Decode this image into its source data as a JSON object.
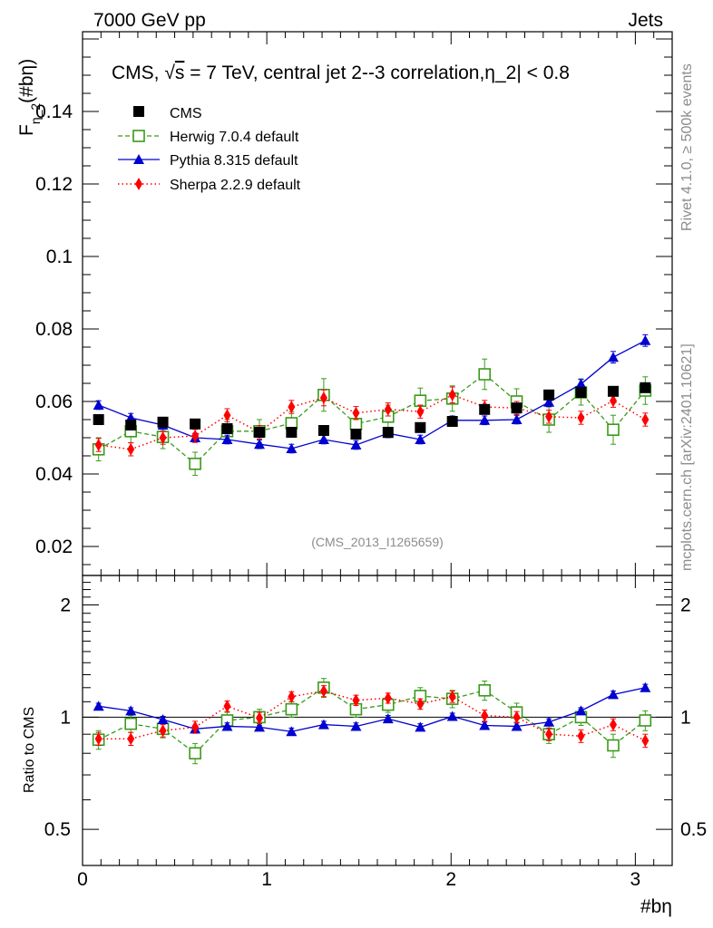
{
  "header": {
    "left": "7000 GeV pp",
    "right": "Jets"
  },
  "chart_data": {
    "type": "scatter",
    "title": "CMS, √s = 7 TeV, central jet 2--3 correlation,η_2| < 0.8",
    "title_prefix": "CMS, ",
    "title_sqrt": "√",
    "title_s": "s",
    "title_suffix": " = 7 TeV, central jet 2--3 correlation,η_2| < 0.8",
    "ylabel": "F_η_2(#bη)",
    "ylabel_main": "F",
    "ylabel_sub": "η_2",
    "ylabel_tail": "(#bη)",
    "xlabel": "#bη",
    "ratio_ylabel": "Ratio to CMS",
    "analysis_id": "(CMS_2013_I1265659)",
    "side_label_1": "Rivet 4.1.0, ≥ 500k events",
    "side_label_2": "mcplots.cern.ch [arXiv:2401.10621]",
    "xlim": [
      0,
      3.2
    ],
    "ylim": [
      0.012,
      0.162
    ],
    "ratio_ylim": [
      0.4,
      2.4
    ],
    "x_ticks": [
      {
        "v": 0,
        "label": "0"
      },
      {
        "v": 1,
        "label": "1"
      },
      {
        "v": 2,
        "label": "2"
      },
      {
        "v": 3,
        "label": "3"
      }
    ],
    "y_ticks": [
      {
        "v": 0.02,
        "label": "0.02"
      },
      {
        "v": 0.04,
        "label": "0.04"
      },
      {
        "v": 0.06,
        "label": "0.06"
      },
      {
        "v": 0.08,
        "label": "0.08"
      },
      {
        "v": 0.1,
        "label": "0.1"
      },
      {
        "v": 0.12,
        "label": "0.12"
      },
      {
        "v": 0.14,
        "label": "0.14"
      }
    ],
    "ratio_y_ticks": [
      {
        "v": 0.5,
        "label": "0.5"
      },
      {
        "v": 1,
        "label": "1"
      },
      {
        "v": 2,
        "label": "2"
      }
    ],
    "x": [
      0.087,
      0.262,
      0.436,
      0.611,
      0.785,
      0.96,
      1.134,
      1.309,
      1.484,
      1.658,
      1.833,
      2.007,
      2.182,
      2.356,
      2.531,
      2.705,
      2.88,
      3.054
    ],
    "series": [
      {
        "name": "CMS",
        "color": "#000000",
        "marker": "square",
        "values": [
          0.055,
          0.0535,
          0.0543,
          0.0538,
          0.0525,
          0.0515,
          0.0515,
          0.052,
          0.051,
          0.0515,
          0.0528,
          0.0545,
          0.0578,
          0.0582,
          0.0618,
          0.0625,
          0.0628,
          0.0638
        ],
        "err": [
          0.0006,
          0.0006,
          0.0006,
          0.0006,
          0.0006,
          0.0006,
          0.0006,
          0.0006,
          0.0006,
          0.0006,
          0.0006,
          0.0006,
          0.0006,
          0.0006,
          0.0006,
          0.0006,
          0.0006,
          0.0006
        ],
        "ratio": [
          1,
          1,
          1,
          1,
          1,
          1,
          1,
          1,
          1,
          1,
          1,
          1,
          1,
          1,
          1,
          1,
          1,
          1
        ]
      },
      {
        "name": "Herwig 7.0.4 default",
        "color": "#3a9a1a",
        "marker": "open-square",
        "line": "dashed",
        "values": [
          0.0468,
          0.0518,
          0.0502,
          0.0428,
          0.0518,
          0.0518,
          0.054,
          0.0618,
          0.0538,
          0.0558,
          0.0602,
          0.0608,
          0.0675,
          0.06,
          0.055,
          0.0625,
          0.0522,
          0.063
        ],
        "err": [
          0.0032,
          0.0032,
          0.0032,
          0.0032,
          0.0032,
          0.0032,
          0.0032,
          0.0045,
          0.0032,
          0.0032,
          0.0035,
          0.0035,
          0.0042,
          0.0035,
          0.0035,
          0.0035,
          0.004,
          0.0038
        ],
        "ratio": [
          0.87,
          0.96,
          0.93,
          0.8,
          0.98,
          1.0,
          1.05,
          1.2,
          1.05,
          1.08,
          1.14,
          1.12,
          1.18,
          1.03,
          0.9,
          1.0,
          0.84,
          0.98
        ],
        "ratio_err": [
          0.05,
          0.05,
          0.05,
          0.05,
          0.05,
          0.05,
          0.05,
          0.07,
          0.05,
          0.05,
          0.06,
          0.06,
          0.07,
          0.06,
          0.05,
          0.05,
          0.06,
          0.06
        ]
      },
      {
        "name": "Pythia 8.315 default",
        "color": "#0000d0",
        "marker": "triangle",
        "line": "solid",
        "values": [
          0.059,
          0.0555,
          0.0535,
          0.05,
          0.0495,
          0.0482,
          0.047,
          0.0495,
          0.048,
          0.0512,
          0.0495,
          0.0548,
          0.0548,
          0.055,
          0.0598,
          0.0648,
          0.0722,
          0.0768
        ],
        "err": [
          0.0012,
          0.0012,
          0.0012,
          0.0012,
          0.0012,
          0.0012,
          0.0012,
          0.0012,
          0.0012,
          0.0012,
          0.0012,
          0.0012,
          0.0012,
          0.0012,
          0.0012,
          0.0014,
          0.0016,
          0.0016
        ],
        "ratio": [
          1.07,
          1.04,
          0.985,
          0.93,
          0.945,
          0.94,
          0.915,
          0.955,
          0.945,
          0.99,
          0.94,
          1.005,
          0.95,
          0.945,
          0.97,
          1.04,
          1.15,
          1.2
        ],
        "ratio_err": [
          0.02,
          0.02,
          0.02,
          0.02,
          0.02,
          0.02,
          0.02,
          0.02,
          0.02,
          0.02,
          0.02,
          0.02,
          0.02,
          0.02,
          0.02,
          0.02,
          0.025,
          0.025
        ]
      },
      {
        "name": "Sherpa 2.2.9 default",
        "color": "#ff0000",
        "marker": "diamond",
        "line": "dotted",
        "values": [
          0.048,
          0.0468,
          0.05,
          0.0505,
          0.0562,
          0.0515,
          0.0585,
          0.061,
          0.0568,
          0.0578,
          0.0572,
          0.0618,
          0.0585,
          0.0582,
          0.0558,
          0.0555,
          0.0602,
          0.055
        ],
        "err": [
          0.0018,
          0.0018,
          0.0018,
          0.0018,
          0.0018,
          0.0018,
          0.0018,
          0.0022,
          0.0018,
          0.0018,
          0.0018,
          0.0022,
          0.0018,
          0.0018,
          0.0018,
          0.0018,
          0.0018,
          0.0018
        ],
        "ratio": [
          0.875,
          0.875,
          0.92,
          0.94,
          1.07,
          0.995,
          1.135,
          1.175,
          1.11,
          1.125,
          1.085,
          1.135,
          1.01,
          1.0,
          0.9,
          0.89,
          0.955,
          0.865
        ],
        "ratio_err": [
          0.035,
          0.035,
          0.035,
          0.035,
          0.035,
          0.035,
          0.035,
          0.04,
          0.035,
          0.035,
          0.035,
          0.04,
          0.035,
          0.035,
          0.035,
          0.035,
          0.035,
          0.035
        ]
      }
    ]
  }
}
